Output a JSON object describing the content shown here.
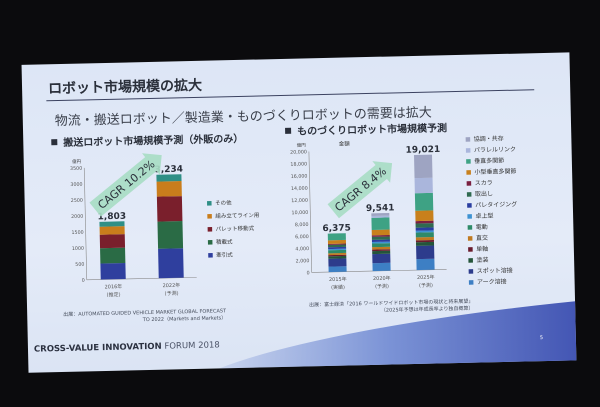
{
  "slide": {
    "title": "ロボット市場規模の拡大",
    "subtitle": "物流・搬送ロボット／製造業・ものづくりロボットの需要は拡大",
    "footer_bold": "CROSS-VALUE INNOVATION",
    "footer_light": "FORUM 2018",
    "page_number": "5"
  },
  "chart_data": [
    {
      "type": "bar",
      "stacked": true,
      "title": "搬送ロボット市場規模予測（外販のみ）",
      "ylabel": "億円",
      "ylim": [
        0,
        3500
      ],
      "yticks": [
        "0",
        "500",
        "1000",
        "1500",
        "2000",
        "2500",
        "3000",
        "3500"
      ],
      "categories": [
        "2016年",
        "2022年"
      ],
      "category_notes": [
        "(推定)",
        "(予測)"
      ],
      "totals": [
        "1,803",
        "3,234"
      ],
      "annotation": "CAGR 10.2%",
      "legend_position": "right",
      "series": [
        {
          "name": "牽引式",
          "color": "#2f3f9e",
          "values": [
            500,
            920
          ]
        },
        {
          "name": "積載式",
          "color": "#2a6b45",
          "values": [
            480,
            850
          ]
        },
        {
          "name": "パレット移動式",
          "color": "#7a1f2c",
          "values": [
            420,
            780
          ]
        },
        {
          "name": "組み立てライン用",
          "color": "#c97d1c",
          "values": [
            250,
            470
          ]
        },
        {
          "name": "その他",
          "color": "#2f8f86",
          "values": [
            153,
            214
          ]
        }
      ],
      "source": [
        "出展：AUTOMATED GUIDED VEHICLE MARKET GLOBAL FORECAST",
        "TO 2022（Markets and Markets）"
      ]
    },
    {
      "type": "bar",
      "stacked": true,
      "title": "ものづくりロボット市場規模予測",
      "subtitle": "金額",
      "ylabel": "億円",
      "ylim": [
        0,
        20000
      ],
      "yticks": [
        "0",
        "2,000",
        "4,000",
        "6,000",
        "8,000",
        "10,000",
        "12,000",
        "14,000",
        "16,000",
        "18,000",
        "20,000"
      ],
      "categories": [
        "2015年",
        "2020年",
        "2025年"
      ],
      "category_notes": [
        "(実績)",
        "(予測)",
        "(予測)"
      ],
      "totals": [
        "6,375",
        "9,541",
        "19,021"
      ],
      "annotation": "CAGR 8.4%",
      "legend_position": "right",
      "series": [
        {
          "name": "アーク溶接",
          "color": "#3d7fc4",
          "values": [
            900,
            1300,
            1800
          ]
        },
        {
          "name": "スポット溶接",
          "color": "#2d3c8c",
          "values": [
            1300,
            1500,
            2200
          ]
        },
        {
          "name": "塗装",
          "color": "#24553a",
          "values": [
            400,
            500,
            600
          ]
        },
        {
          "name": "単軸",
          "color": "#6a1b2c",
          "values": [
            200,
            250,
            300
          ]
        },
        {
          "name": "直交",
          "color": "#c07a20",
          "values": [
            300,
            400,
            500
          ]
        },
        {
          "name": "電動",
          "color": "#2e8a68",
          "values": [
            500,
            600,
            800
          ]
        },
        {
          "name": "卓上型",
          "color": "#3e92d2",
          "values": [
            200,
            250,
            300
          ]
        },
        {
          "name": "パレタイジング",
          "color": "#2a3ea0",
          "values": [
            300,
            350,
            500
          ]
        },
        {
          "name": "取出し",
          "color": "#2f6a50",
          "values": [
            400,
            500,
            700
          ]
        },
        {
          "name": "スカラ",
          "color": "#7a2040",
          "values": [
            150,
            250,
            400
          ]
        },
        {
          "name": "小型垂直多関節",
          "color": "#c8801c",
          "values": [
            600,
            900,
            1700
          ]
        },
        {
          "name": "垂直多関節",
          "color": "#3ea284",
          "values": [
            1100,
            2000,
            2900
          ]
        },
        {
          "name": "パラレルリンク",
          "color": "#aab6dc",
          "values": [
            0,
            300,
            2500
          ]
        },
        {
          "name": "協調・共存",
          "color": "#9ea4c2",
          "values": [
            25,
            441,
            3821
          ]
        }
      ],
      "source": [
        "出展：富士経済「2016 ワールドワイドロボット市場の現状と将来展望」",
        "（2025年予想は年成長率より独自概算）"
      ]
    }
  ]
}
